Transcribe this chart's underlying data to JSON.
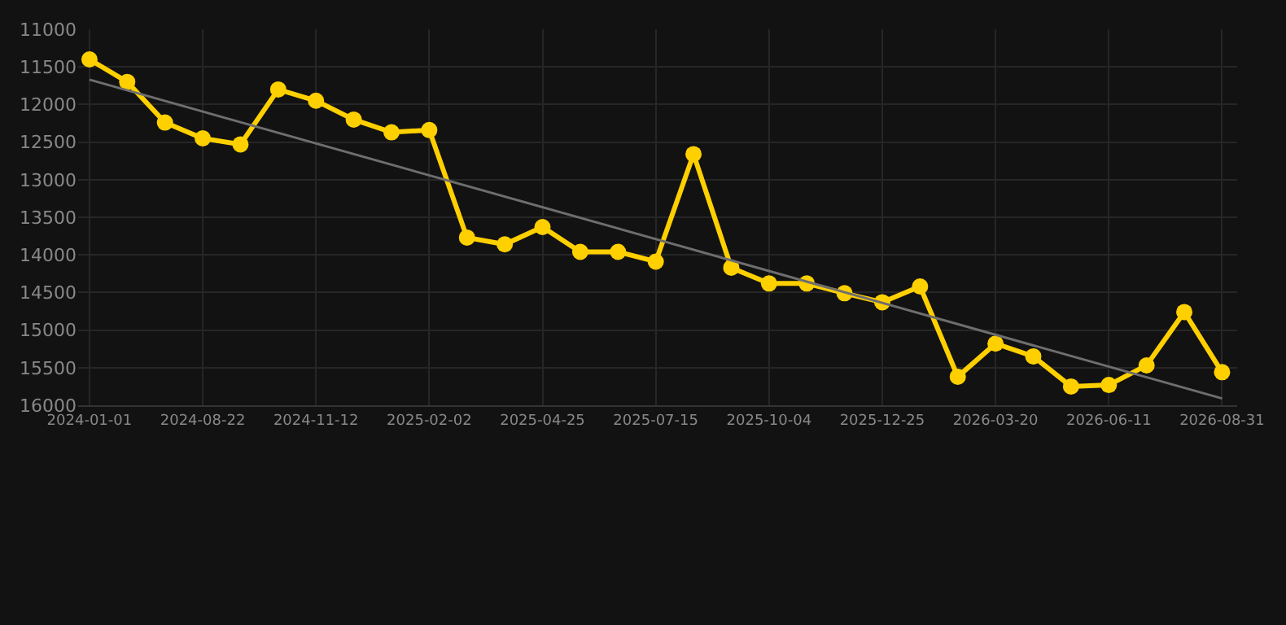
{
  "chart_data": {
    "type": "line",
    "categories": [
      "2024-01-01",
      null,
      null,
      "2024-08-22",
      null,
      null,
      "2024-11-12",
      null,
      null,
      "2025-02-02",
      null,
      null,
      "2025-04-25",
      null,
      null,
      "2025-07-15",
      null,
      null,
      "2025-10-04",
      null,
      null,
      "2025-12-25",
      null,
      null,
      "2026-03-20",
      null,
      null,
      "2026-06-11",
      null,
      null,
      "2026-08-31"
    ],
    "series": [
      {
        "color": "#ffd000",
        "values": [
          11400,
          11700,
          12240,
          12450,
          12530,
          11800,
          11950,
          12200,
          12370,
          12340,
          13770,
          13860,
          13630,
          13960,
          13960,
          14090,
          12660,
          14170,
          14380,
          14380,
          14510,
          14630,
          14420,
          15620,
          15180,
          15350,
          15750,
          15730,
          15470,
          14760,
          15560
        ],
        "marker": "circle"
      },
      {
        "type": "line",
        "color": "#6e6e6e",
        "values": [
          11670,
          null,
          null,
          null,
          null,
          null,
          null,
          null,
          null,
          null,
          null,
          null,
          null,
          null,
          null,
          null,
          null,
          null,
          null,
          null,
          null,
          null,
          null,
          null,
          null,
          null,
          null,
          null,
          null,
          null,
          15910
        ],
        "marker": "none"
      }
    ],
    "ylim": [
      16000,
      11000
    ],
    "yticks": [
      11000,
      11500,
      12000,
      12500,
      13000,
      13500,
      14000,
      14500,
      15000,
      15500,
      16000
    ],
    "grid": true
  }
}
